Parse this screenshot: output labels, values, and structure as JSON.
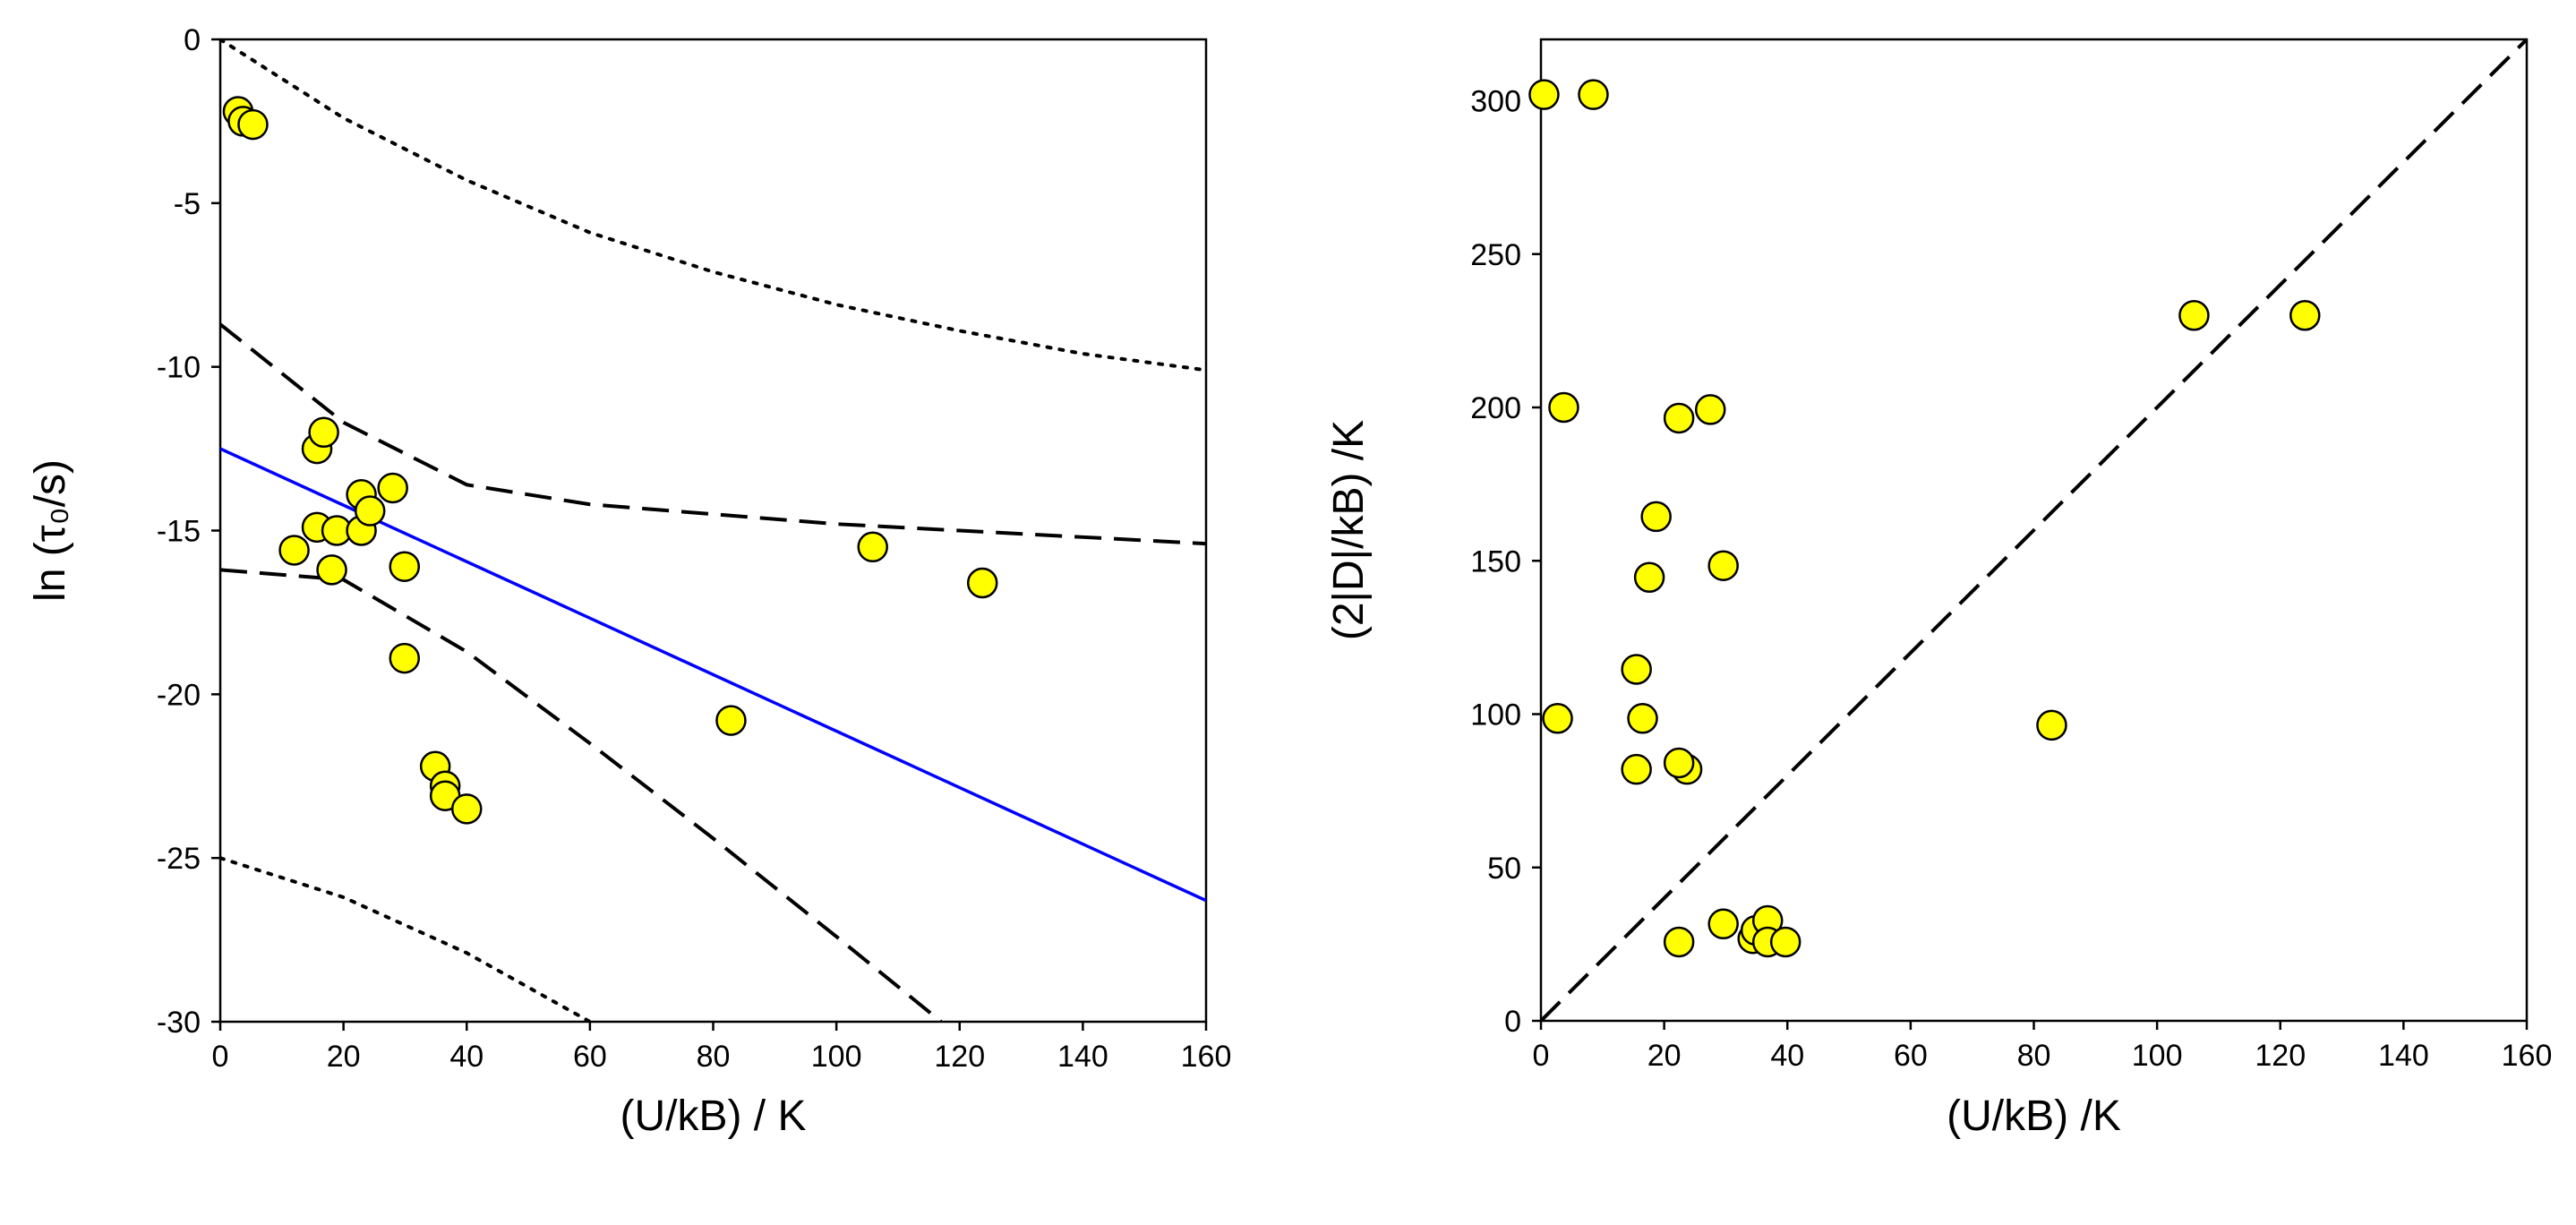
{
  "chart_data": [
    {
      "type": "scatter",
      "x_label": "(U/kB) / K",
      "y_label": "ln (τ₀/s)",
      "xlim": [
        0,
        160
      ],
      "ylim": [
        -30,
        0
      ],
      "xticks": [
        0,
        20,
        40,
        60,
        80,
        100,
        120,
        140,
        160
      ],
      "yticks": [
        0,
        -5,
        -10,
        -15,
        -20,
        -25,
        -30
      ],
      "grid": false,
      "series": [
        {
          "style": "dotted",
          "color": "#000000",
          "x": [
            0,
            20,
            40,
            60,
            80,
            100,
            120,
            140,
            160
          ],
          "values": [
            0,
            -2.4,
            -4.3,
            -5.9,
            -7.1,
            -8.1,
            -8.9,
            -9.6,
            -10.1
          ]
        },
        {
          "style": "dotted",
          "color": "#000000",
          "x": [
            0,
            20,
            40,
            60
          ],
          "values": [
            -25,
            -26.2,
            -27.9,
            -30
          ]
        },
        {
          "style": "dashed",
          "color": "#000000",
          "x": [
            0,
            20,
            40,
            60,
            80,
            100,
            120,
            140,
            160
          ],
          "values": [
            -8.7,
            -11.7,
            -13.6,
            -14.2,
            -14.5,
            -14.8,
            -15.0,
            -15.2,
            -15.4
          ]
        },
        {
          "style": "dashed",
          "color": "#000000",
          "x": [
            0,
            20,
            40,
            60,
            80,
            100,
            117
          ],
          "values": [
            -16.2,
            -16.5,
            -18.7,
            -21.5,
            -24.4,
            -27.4,
            -30
          ]
        },
        {
          "style": "solid",
          "color": "#0000ff",
          "x": [
            0,
            160
          ],
          "values": [
            -12.5,
            -26.3
          ]
        },
        {
          "style": "marker",
          "color": "#ffff00",
          "x": [
            2.9,
            3.7,
            5.3,
            15.7,
            16.8,
            12,
            15.7,
            18.1,
            18.9,
            22.9,
            22.9,
            24.3,
            28,
            29.9,
            29.9,
            34.9,
            36.5,
            36.5,
            40,
            82.9,
            105.9,
            123.7
          ],
          "values": [
            -2.2,
            -2.5,
            -2.6,
            -12.5,
            -12.0,
            -15.6,
            -14.9,
            -16.2,
            -15.0,
            -13.9,
            -15.0,
            -14.4,
            -13.7,
            -16.1,
            -18.9,
            -22.2,
            -22.8,
            -23.1,
            -23.5,
            -20.8,
            -15.5,
            -16.6
          ]
        }
      ]
    },
    {
      "type": "scatter",
      "x_label": "(U/kB) /K",
      "y_label": "(2|D|/kB) /K",
      "xlim": [
        0,
        160
      ],
      "ylim": [
        0,
        320
      ],
      "xticks": [
        0,
        20,
        40,
        60,
        80,
        100,
        120,
        140,
        160
      ],
      "yticks": [
        0,
        50,
        100,
        150,
        200,
        250,
        300
      ],
      "grid": false,
      "series": [
        {
          "style": "dashed",
          "color": "#000000",
          "x": [
            0,
            160
          ],
          "values": [
            0,
            320
          ]
        },
        {
          "style": "marker",
          "color": "#ffff00",
          "x": [
            0.5,
            8.5,
            3.7,
            2.7,
            15.5,
            15.5,
            16.5,
            17.6,
            18.7,
            22.4,
            27.5,
            29.6,
            23.7,
            22.4,
            22.4,
            29.6,
            34.4,
            34.9,
            36.8,
            36.8,
            39.7,
            82.9,
            106,
            124
          ],
          "values": [
            302,
            302,
            200,
            98.6,
            114.6,
            82,
            98.6,
            144.6,
            164.4,
            196.5,
            199.3,
            148.4,
            82,
            84.1,
            25.7,
            31.6,
            26.8,
            29.5,
            32.7,
            25.7,
            25.7,
            96.4,
            230,
            230
          ]
        }
      ]
    }
  ]
}
